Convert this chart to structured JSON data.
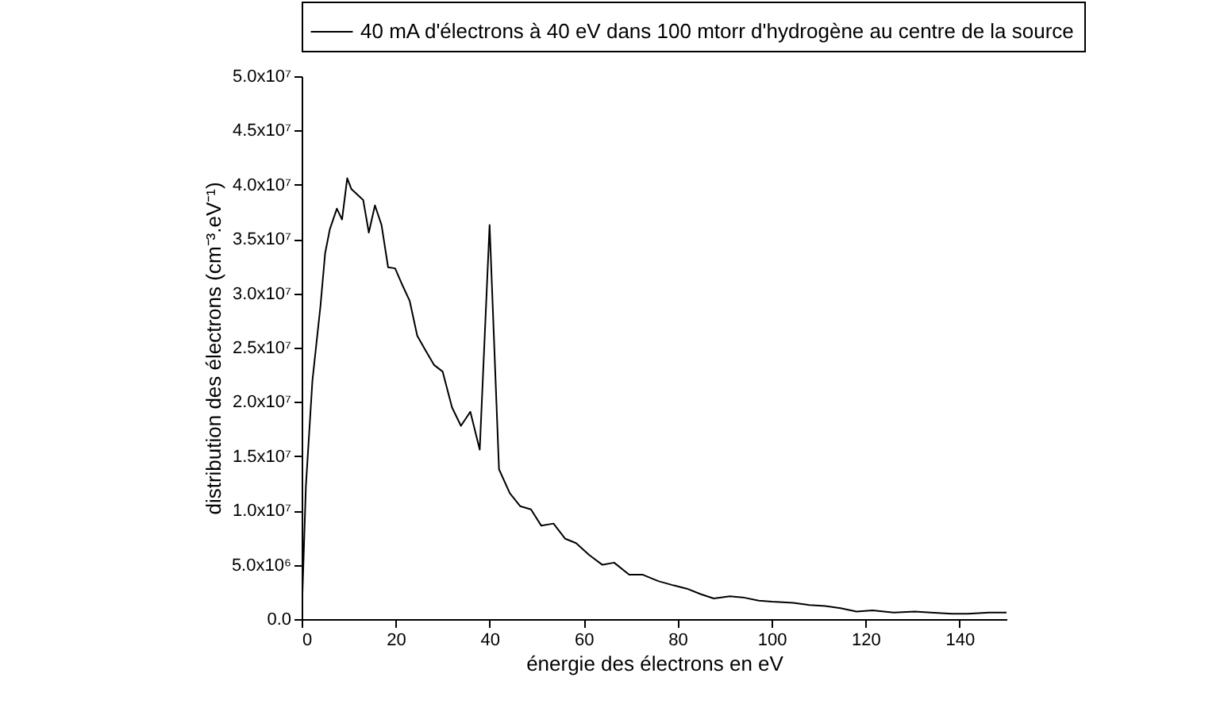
{
  "chart_data": {
    "type": "line",
    "xlabel": "énergie des électrons en eV",
    "ylabel": "distribution des électrons (cm⁻³.eV⁻¹)",
    "x": [
      0,
      0.9,
      2.3,
      4,
      5,
      6,
      7.5,
      8.6,
      9.7,
      10.6,
      13.1,
      14.3,
      15.6,
      17,
      18.4,
      19.9,
      21.5,
      23,
      24.6,
      26.3,
      28.2,
      30,
      32,
      33.9,
      35.9,
      37.9,
      40,
      42,
      44.3,
      46.5,
      48.8,
      51,
      53.6,
      56.1,
      58.4,
      61.2,
      64,
      66.5,
      69.7,
      72.5,
      75.9,
      79.2,
      82,
      84.9,
      87.7,
      91.1,
      93.9,
      97.3,
      100.1,
      104.6,
      108,
      111.4,
      114.7,
      118.1,
      121.5,
      126,
      130.5,
      133.9,
      138.4,
      141.8,
      146.3,
      150
    ],
    "series": [
      {
        "name": "40 mA d'électrons à 40 eV dans 100 mtorr d'hydrogène au centre de la source",
        "color": "#000000",
        "values": [
          0,
          12200000,
          22000000,
          28800000,
          33700000,
          35900000,
          37800000,
          36800000,
          40600000,
          39600000,
          38600000,
          35600000,
          38100000,
          36300000,
          32400000,
          32300000,
          30700000,
          29300000,
          26100000,
          24800000,
          23400000,
          22800000,
          19500000,
          17800000,
          19100000,
          15600000,
          36300000,
          13800000,
          11600000,
          10400000,
          10100000,
          8600000,
          8800000,
          7400000,
          7000000,
          5900000,
          5000000,
          5200000,
          4100000,
          4100000,
          3500000,
          3100000,
          2800000,
          2300000,
          1900000,
          2100000,
          2000000,
          1700000,
          1600000,
          1500000,
          1300000,
          1200000,
          1000000,
          700000,
          800000,
          600000,
          700000,
          600000,
          500000,
          500000,
          600000,
          600000
        ]
      }
    ],
    "xlim": [
      0,
      150
    ],
    "xticks": [
      0,
      20,
      40,
      60,
      80,
      100,
      120,
      140
    ],
    "ylim": [
      0,
      50000000
    ],
    "yticks": [
      {
        "value": 0,
        "label": "0.0"
      },
      {
        "value": 5000000,
        "label": "5.0x10⁶"
      },
      {
        "value": 10000000,
        "label": "1.0x10⁷"
      },
      {
        "value": 15000000,
        "label": "1.5x10⁷"
      },
      {
        "value": 20000000,
        "label": "2.0x10⁷"
      },
      {
        "value": 25000000,
        "label": "2.5x10⁷"
      },
      {
        "value": 30000000,
        "label": "3.0x10⁷"
      },
      {
        "value": 35000000,
        "label": "3.5x10⁷"
      },
      {
        "value": 40000000,
        "label": "4.0x10⁷"
      },
      {
        "value": 45000000,
        "label": "4.5x10⁷"
      },
      {
        "value": 50000000,
        "label": "5.0x10⁷"
      }
    ],
    "grid": false,
    "legend": "top",
    "line_style": "solid",
    "marker": "none"
  }
}
